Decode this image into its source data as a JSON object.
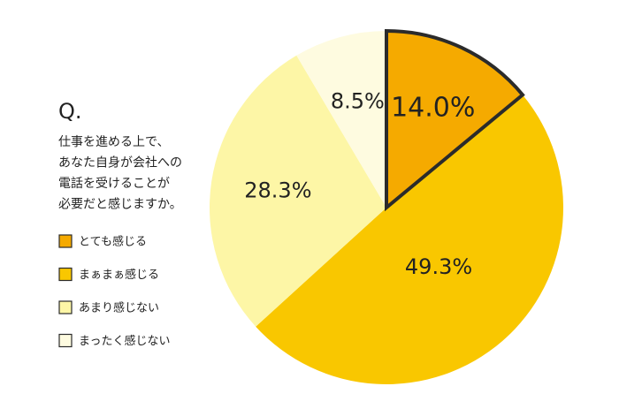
{
  "chart_data": {
    "type": "pie",
    "question_label": "Q.",
    "title_lines": [
      "仕事を進める上で、",
      "あなた自身が会社への",
      "電話を受けることが",
      "必要だと感じますか。"
    ],
    "categories": [
      "とても感じる",
      "まぁまぁ感じる",
      "あまり感じない",
      "まったく感じない"
    ],
    "values": [
      14.0,
      49.3,
      28.3,
      8.5
    ],
    "value_labels": [
      "14.0%",
      "49.3%",
      "28.3%",
      "8.5%"
    ],
    "colors": [
      "#f5aa00",
      "#f9c700",
      "#fdf6a6",
      "#fefbe0"
    ],
    "outline_color": "#2b2b2b"
  }
}
